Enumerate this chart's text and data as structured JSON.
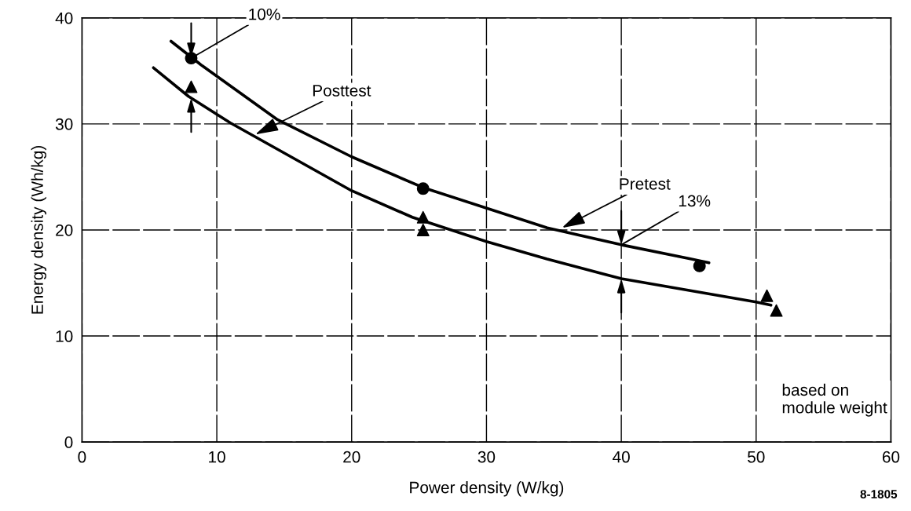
{
  "chart_data": {
    "type": "scatter",
    "xlabel": "Power density (W/kg)",
    "ylabel": "Energy density (Wh/kg)",
    "xlim": [
      0,
      60
    ],
    "ylim": [
      0,
      40
    ],
    "xticks": [
      0,
      10,
      20,
      30,
      40,
      50,
      60
    ],
    "yticks": [
      0,
      10,
      20,
      30,
      40
    ],
    "grid": true,
    "legend": false,
    "series": [
      {
        "type": "line",
        "color": "#000000",
        "marker": "none",
        "line_style": "solid",
        "x": [
          6.6,
          8.9,
          14.5,
          20,
          25.3,
          34.5,
          40,
          45.2,
          46.5
        ],
        "values": [
          37.8,
          35.5,
          30.4,
          26.9,
          24.0,
          20.2,
          18.6,
          17.25,
          16.9
        ]
      },
      {
        "type": "line",
        "color": "#000000",
        "marker": "none",
        "line_style": "solid",
        "x": [
          5.3,
          7.9,
          11.0,
          20,
          24.5,
          30,
          34.5,
          40,
          50,
          51.1
        ],
        "values": [
          35.3,
          32.6,
          30.1,
          23.7,
          21.2,
          18.9,
          17.25,
          15.4,
          13.2,
          12.9
        ]
      },
      {
        "color": "#000000",
        "marker": "circle",
        "x": [
          8.1,
          25.3,
          45.8
        ],
        "values": [
          36.2,
          23.9,
          16.6
        ]
      },
      {
        "color": "#000000",
        "marker": "triangle",
        "x": [
          8.1,
          25.3,
          25.3,
          50.8,
          51.5
        ],
        "values": [
          33.5,
          21.2,
          20.0,
          13.8,
          12.4
        ]
      }
    ],
    "annotations": [
      {
        "text": "10%",
        "x": 8.1,
        "y": 36.2
      },
      {
        "text": "Posttest",
        "x": 12.85,
        "y": 29.0
      },
      {
        "text": "Pretest",
        "x": 35.6,
        "y": 20.2
      },
      {
        "text": "13%",
        "x": 40,
        "y": 18.6
      },
      "based on\nmodule weight",
      "8-1805"
    ]
  }
}
